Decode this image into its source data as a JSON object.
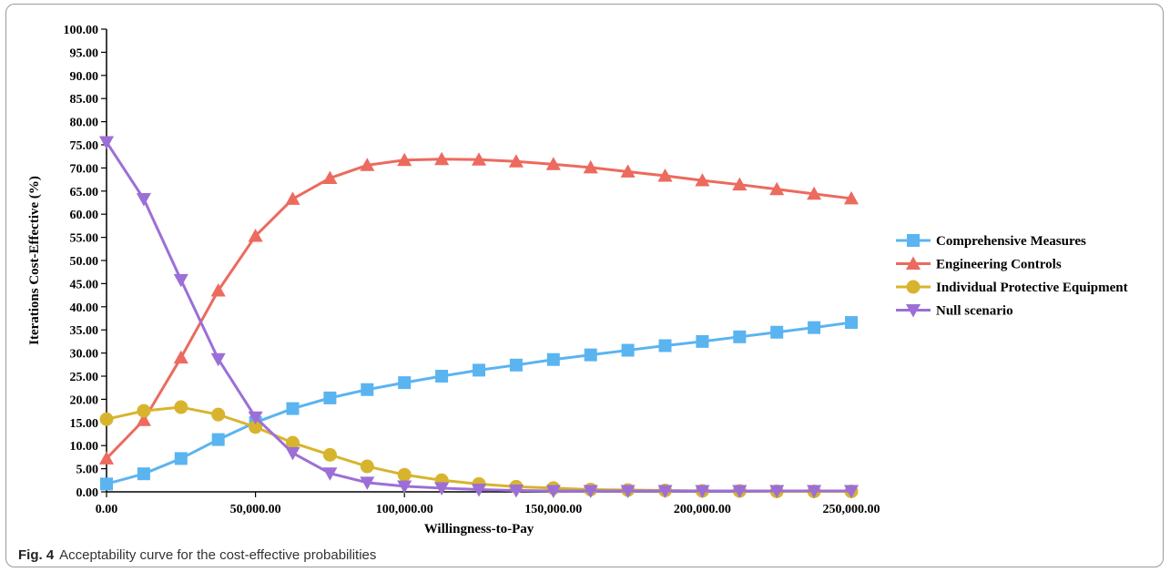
{
  "figure": {
    "label": "Fig. 4",
    "caption": "Acceptability curve for the cost-effective probabilities"
  },
  "chart_data": {
    "type": "line",
    "xlabel": "Willingness-to-Pay",
    "ylabel": "Iterations Cost-Effective (%)",
    "xlim": [
      0,
      250000
    ],
    "ylim": [
      0,
      100
    ],
    "xticks": [
      0,
      50000,
      100000,
      150000,
      200000,
      250000
    ],
    "xtick_labels": [
      "0.00",
      "50,000.00",
      "100,000.00",
      "150,000.00",
      "200,000.00",
      "250,000.00"
    ],
    "yticks": [
      0,
      5,
      10,
      15,
      20,
      25,
      30,
      35,
      40,
      45,
      50,
      55,
      60,
      65,
      70,
      75,
      80,
      85,
      90,
      95,
      100
    ],
    "ytick_labels": [
      "0.00",
      "5.00",
      "10.00",
      "15.00",
      "20.00",
      "25.00",
      "30.00",
      "35.00",
      "40.00",
      "45.00",
      "50.00",
      "55.00",
      "60.00",
      "65.00",
      "70.00",
      "75.00",
      "80.00",
      "85.00",
      "90.00",
      "95.00",
      "100.00"
    ],
    "grid": false,
    "legend_position": "right",
    "x": [
      0,
      12500,
      25000,
      37500,
      50000,
      62500,
      75000,
      87500,
      100000,
      112500,
      125000,
      137500,
      150000,
      162500,
      175000,
      187500,
      200000,
      212500,
      225000,
      237500,
      250000
    ],
    "series": [
      {
        "name": "Comprehensive Measures",
        "color": "#5ab4f0",
        "marker": "square",
        "values": [
          1.7,
          3.9,
          7.2,
          11.3,
          15.0,
          18.0,
          20.3,
          22.1,
          23.6,
          25.0,
          26.3,
          27.4,
          28.6,
          29.6,
          30.6,
          31.6,
          32.5,
          33.5,
          34.5,
          35.5,
          36.6
        ]
      },
      {
        "name": "Engineering Controls",
        "color": "#ec6a5e",
        "marker": "triangle-up",
        "values": [
          7.2,
          15.5,
          29.0,
          43.5,
          55.3,
          63.3,
          67.8,
          70.6,
          71.7,
          71.9,
          71.8,
          71.4,
          70.8,
          70.1,
          69.2,
          68.3,
          67.3,
          66.4,
          65.4,
          64.4,
          63.4
        ]
      },
      {
        "name": "Individual Protective Equipment",
        "color": "#d8b42e",
        "marker": "circle",
        "values": [
          15.7,
          17.5,
          18.3,
          16.7,
          14.0,
          10.6,
          8.0,
          5.5,
          3.7,
          2.5,
          1.7,
          1.1,
          0.8,
          0.5,
          0.4,
          0.3,
          0.2,
          0.2,
          0.1,
          0.1,
          0.1
        ]
      },
      {
        "name": "Null scenario",
        "color": "#9c6fd6",
        "marker": "triangle-down",
        "values": [
          75.6,
          63.3,
          45.8,
          28.7,
          16.1,
          8.4,
          4.0,
          2.0,
          1.2,
          0.8,
          0.5,
          0.3,
          0.2,
          0.2,
          0.2,
          0.2,
          0.2,
          0.2,
          0.2,
          0.2,
          0.2
        ]
      }
    ]
  }
}
